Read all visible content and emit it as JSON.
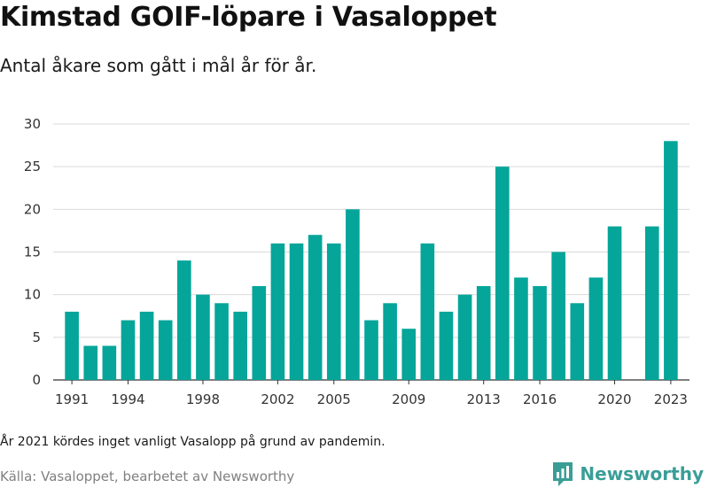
{
  "chart_data": {
    "type": "bar",
    "title": "Kimstad GOIF-löpare i Vasaloppet",
    "subtitle": "Antal åkare som gått i mål år för år.",
    "x": [
      1991,
      1992,
      1993,
      1994,
      1995,
      1996,
      1997,
      1998,
      1999,
      2000,
      2001,
      2002,
      2003,
      2004,
      2005,
      2006,
      2007,
      2008,
      2009,
      2010,
      2011,
      2012,
      2013,
      2014,
      2015,
      2016,
      2017,
      2018,
      2019,
      2020,
      2022,
      2023
    ],
    "values": [
      8,
      4,
      4,
      7,
      8,
      7,
      14,
      10,
      9,
      8,
      11,
      16,
      16,
      17,
      16,
      20,
      7,
      9,
      6,
      16,
      8,
      10,
      11,
      25,
      12,
      11,
      15,
      9,
      12,
      18,
      18,
      28
    ],
    "xlim": [
      1990,
      2024
    ],
    "ylim": [
      0,
      30
    ],
    "yticks": [
      0,
      5,
      10,
      15,
      20,
      25,
      30
    ],
    "xticks": [
      1991,
      1994,
      1998,
      2002,
      2005,
      2009,
      2013,
      2016,
      2020,
      2023
    ],
    "color": "#05a59a",
    "grid": true
  },
  "note": "År 2021 kördes inget vanligt Vasalopp på grund av pandemin.",
  "source": "Källa: Vasaloppet, bearbetet av Newsworthy",
  "brand": {
    "name": "Newsworthy",
    "icon": "bar-chart-logo-icon",
    "color": "#3a9e97"
  }
}
